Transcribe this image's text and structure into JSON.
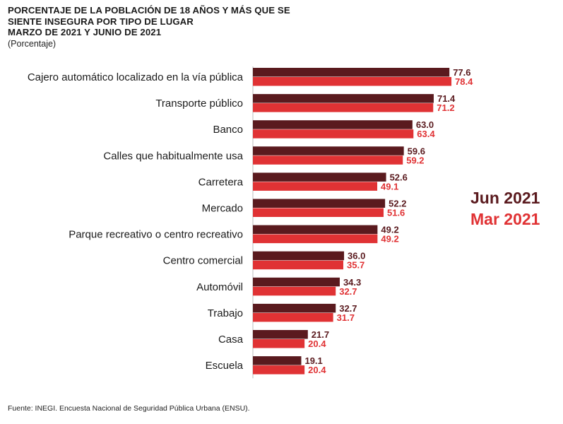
{
  "title_lines": [
    "PORCENTAJE DE LA POBLACIÓN DE 18 AÑOS Y MÁS QUE SE",
    "SIENTE INSEGURA POR TIPO DE LUGAR",
    "MARZO DE 2021 Y JUNIO DE 2021"
  ],
  "unit": "(Porcentaje)",
  "source": "Fuente: INEGI. Encuesta Nacional de Seguridad Pública Urbana (ENSU).",
  "colors": {
    "jun": "#5a1a1e",
    "mar": "#e03234",
    "jun_text": "#5a1a1e",
    "mar_text": "#e03234"
  },
  "legend": [
    {
      "name": "Jun 2021",
      "color": "#5a1a1e"
    },
    {
      "name": "Mar 2021",
      "color": "#e03234"
    }
  ],
  "chart_data": {
    "type": "bar",
    "orientation": "horizontal",
    "categories": [
      "Cajero automático localizado en la vía pública",
      "Transporte público",
      "Banco",
      "Calles que habitualmente usa",
      "Carretera",
      "Mercado",
      "Parque recreativo o centro recreativo",
      "Centro comercial",
      "Automóvil",
      "Trabajo",
      "Casa",
      "Escuela"
    ],
    "series": [
      {
        "name": "Jun 2021",
        "values": [
          77.6,
          71.4,
          63.0,
          59.6,
          52.6,
          52.2,
          49.2,
          36.0,
          34.3,
          32.7,
          21.7,
          19.1
        ],
        "labels": [
          "77.6",
          "71.4",
          "63.0",
          "59.6",
          "52.6",
          "52.2",
          "49.2",
          "36.0",
          "34.3",
          "32.7",
          "21.7",
          "19.1"
        ]
      },
      {
        "name": "Mar 2021",
        "values": [
          78.4,
          71.2,
          63.4,
          59.2,
          49.1,
          51.6,
          49.2,
          35.7,
          32.7,
          31.7,
          20.4,
          20.4
        ],
        "labels": [
          "78.4",
          "71.2",
          "63.4",
          "59.2",
          "49.1",
          "51.6",
          "49.2",
          "35.7",
          "32.7",
          "31.7",
          "20.4",
          "20.4"
        ]
      }
    ],
    "xlim": [
      0,
      100
    ],
    "grid": false,
    "legend_position": "right"
  }
}
